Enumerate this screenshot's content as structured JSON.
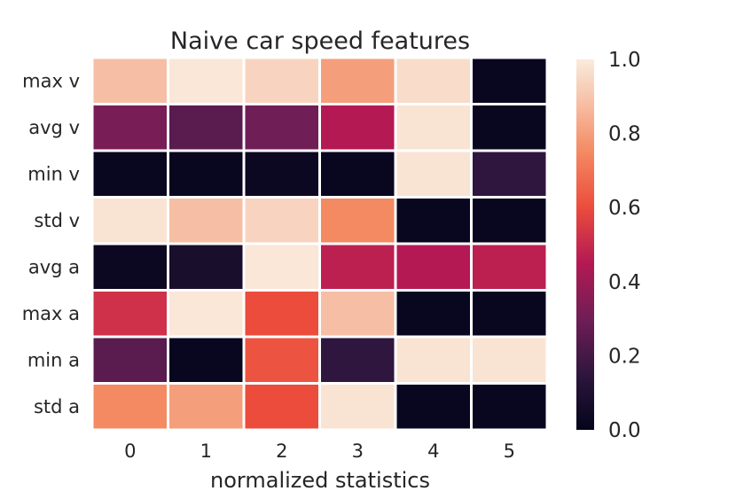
{
  "chart_data": {
    "type": "heatmap",
    "title": "Naive car speed features",
    "xlabel": "normalized statistics",
    "ylabel": "",
    "x_categories": [
      "0",
      "1",
      "2",
      "3",
      "4",
      "5"
    ],
    "y_categories": [
      "max v",
      "avg v",
      "min v",
      "std v",
      "avg a",
      "max a",
      "min a",
      "std a"
    ],
    "values": [
      [
        0.88,
        0.99,
        0.94,
        0.8,
        0.96,
        0.02
      ],
      [
        0.32,
        0.25,
        0.3,
        0.45,
        0.98,
        0.02
      ],
      [
        0.02,
        0.02,
        0.03,
        0.02,
        0.98,
        0.15
      ],
      [
        0.98,
        0.88,
        0.94,
        0.75,
        0.02,
        0.02
      ],
      [
        0.03,
        0.08,
        0.99,
        0.47,
        0.45,
        0.47
      ],
      [
        0.52,
        0.99,
        0.6,
        0.88,
        0.02,
        0.02
      ],
      [
        0.25,
        0.02,
        0.62,
        0.15,
        0.98,
        0.98
      ],
      [
        0.75,
        0.8,
        0.6,
        0.98,
        0.02,
        0.02
      ]
    ],
    "colorbar": {
      "colormap": "rocket",
      "range": [
        0.0,
        1.0
      ],
      "ticks": [
        "0.0",
        "0.2",
        "0.4",
        "0.6",
        "0.8",
        "1.0"
      ]
    },
    "grid": false
  }
}
